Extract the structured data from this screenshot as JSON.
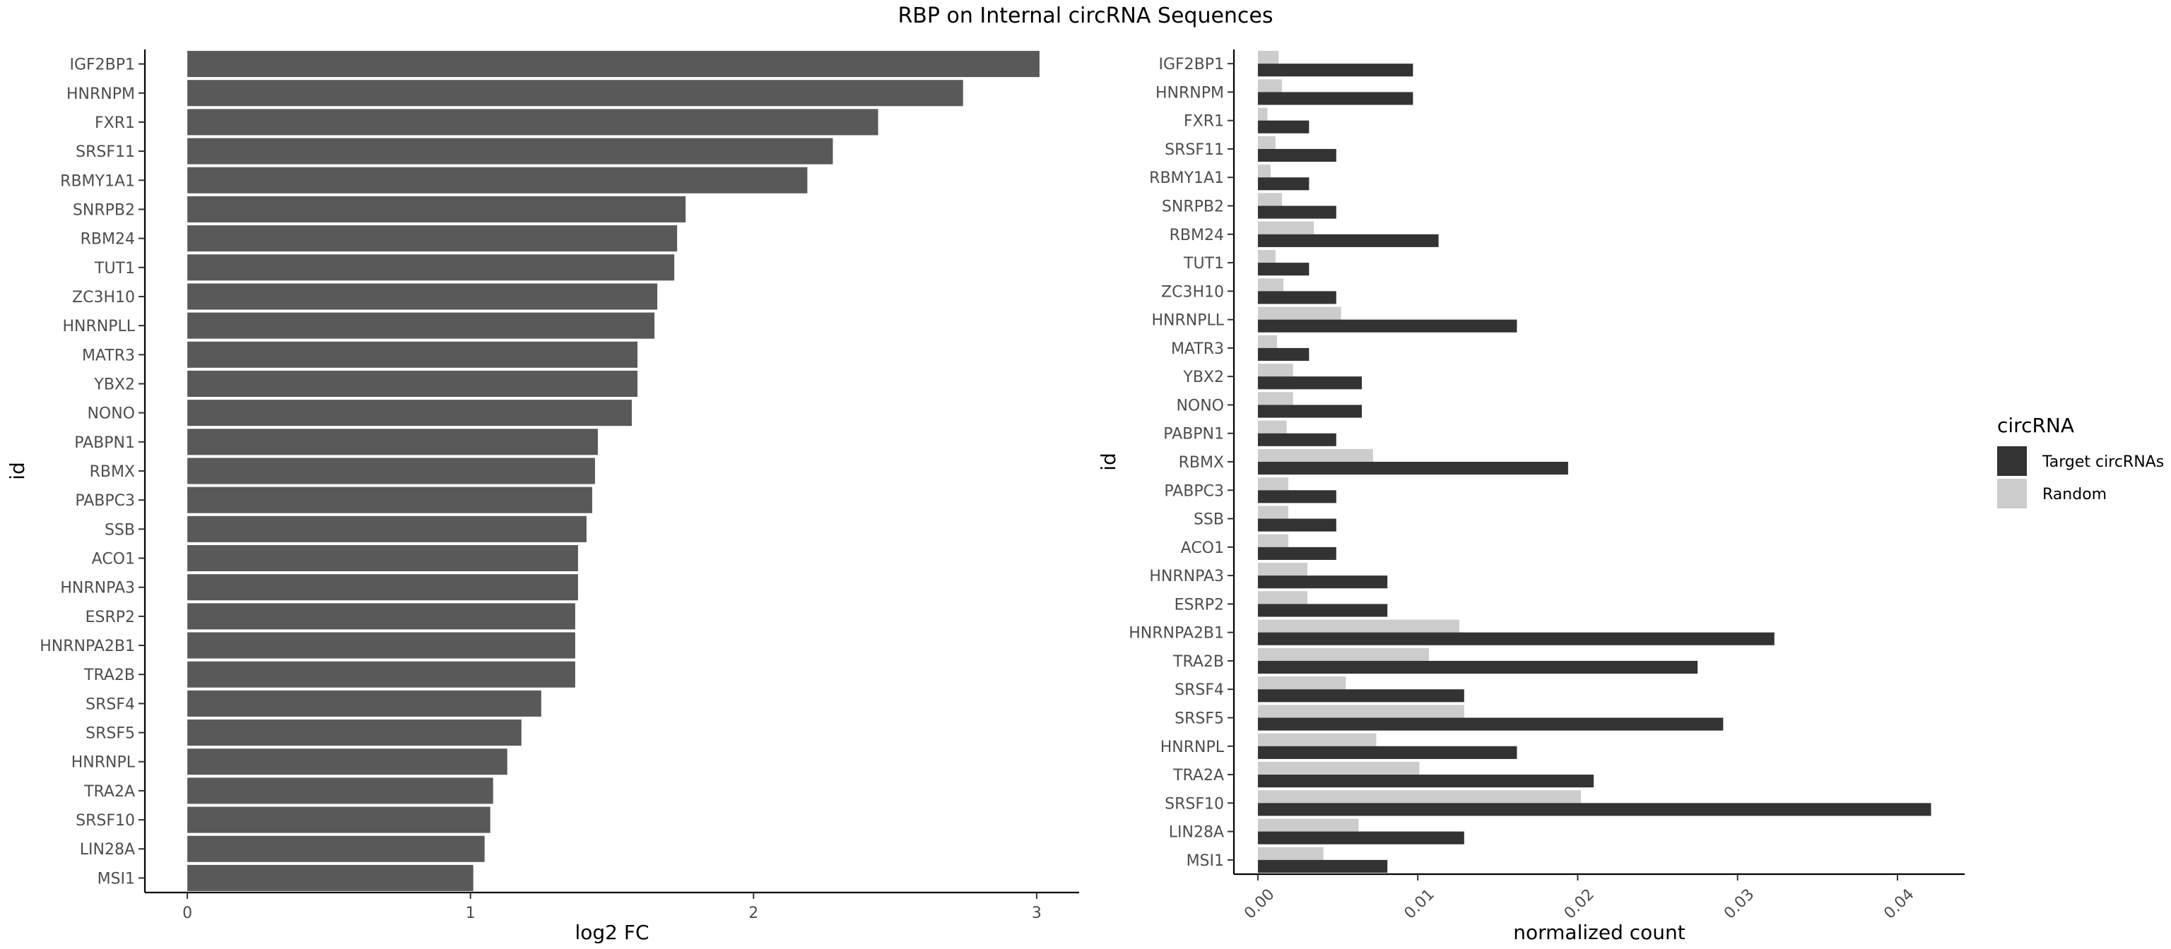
{
  "chart_data": [
    {
      "type": "bar",
      "orientation": "horizontal",
      "title": "RBP on Internal circRNA Sequences",
      "ylabel": "id",
      "xlabel": "log2 FC",
      "xlim": [
        -0.15,
        3.15
      ],
      "xticks": [
        "0",
        "1",
        "2",
        "3"
      ],
      "categories": [
        "IGF2BP1",
        "HNRNPM",
        "FXR1",
        "SRSF11",
        "RBMY1A1",
        "SNRPB2",
        "RBM24",
        "TUT1",
        "ZC3H10",
        "HNRNPLL",
        "MATR3",
        "YBX2",
        "NONO",
        "PABPN1",
        "RBMX",
        "PABPC3",
        "SSB",
        "ACO1",
        "HNRNPA3",
        "ESRP2",
        "HNRNPA2B1",
        "TRA2B",
        "SRSF4",
        "SRSF5",
        "HNRNPL",
        "TRA2A",
        "SRSF10",
        "LIN28A",
        "MSI1"
      ],
      "values": [
        3.01,
        2.74,
        2.44,
        2.28,
        2.19,
        1.76,
        1.73,
        1.72,
        1.66,
        1.65,
        1.59,
        1.59,
        1.57,
        1.45,
        1.44,
        1.43,
        1.41,
        1.38,
        1.38,
        1.37,
        1.37,
        1.37,
        1.25,
        1.18,
        1.13,
        1.08,
        1.07,
        1.05,
        1.01
      ],
      "color": "#595959",
      "grid": false
    },
    {
      "type": "bar",
      "orientation": "horizontal",
      "ylabel": "id",
      "xlabel": "normalized count",
      "xlim": [
        -0.0015,
        0.0442
      ],
      "xticks": [
        "0.00",
        "0.01",
        "0.02",
        "0.03",
        "0.04"
      ],
      "categories": [
        "IGF2BP1",
        "HNRNPM",
        "FXR1",
        "SRSF11",
        "RBMY1A1",
        "SNRPB2",
        "RBM24",
        "TUT1",
        "ZC3H10",
        "HNRNPLL",
        "MATR3",
        "YBX2",
        "NONO",
        "PABPN1",
        "RBMX",
        "PABPC3",
        "SSB",
        "ACO1",
        "HNRNPA3",
        "ESRP2",
        "HNRNPA2B1",
        "TRA2B",
        "SRSF4",
        "SRSF5",
        "HNRNPL",
        "TRA2A",
        "SRSF10",
        "LIN28A",
        "MSI1"
      ],
      "series": [
        {
          "name": "Target circRNAs",
          "color": "#333333",
          "values": [
            0.0097,
            0.0097,
            0.0032,
            0.0049,
            0.0032,
            0.0049,
            0.0113,
            0.0032,
            0.0049,
            0.0162,
            0.0032,
            0.0065,
            0.0065,
            0.0049,
            0.0194,
            0.0049,
            0.0049,
            0.0049,
            0.0081,
            0.0081,
            0.0323,
            0.0275,
            0.0129,
            0.0291,
            0.0162,
            0.021,
            0.0421,
            0.0129,
            0.0081
          ]
        },
        {
          "name": "Random",
          "color": "#cccccc",
          "values": [
            0.0013,
            0.0015,
            0.0006,
            0.0011,
            0.0008,
            0.0015,
            0.0035,
            0.0011,
            0.0016,
            0.0052,
            0.0012,
            0.0022,
            0.0022,
            0.0018,
            0.0072,
            0.0019,
            0.0019,
            0.0019,
            0.0031,
            0.0031,
            0.0126,
            0.0107,
            0.0055,
            0.0129,
            0.0074,
            0.0101,
            0.0202,
            0.0063,
            0.0041
          ]
        }
      ],
      "legend": {
        "title": "circRNA",
        "position": "right"
      },
      "grid": false
    }
  ]
}
